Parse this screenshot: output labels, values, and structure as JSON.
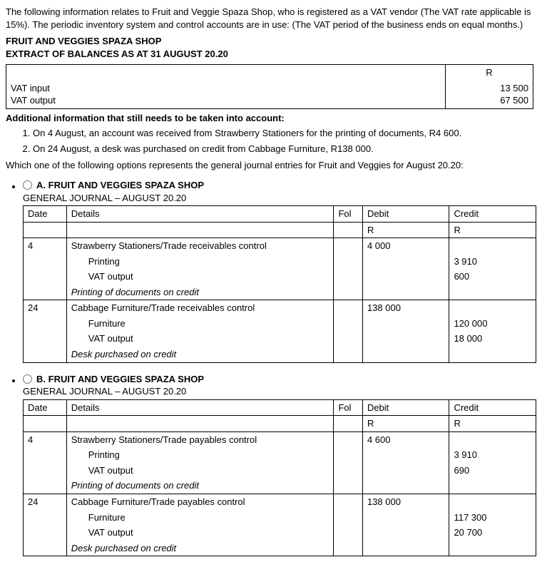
{
  "intro": "The following information relates to Fruit and Veggie Spaza Shop, who is registered as a VAT vendor (The VAT rate applicable is 15%). The periodic inventory system and control accounts are in use: (The VAT period of the business ends on equal months.)",
  "shopName": "FRUIT AND VEGGIES SPAZA SHOP",
  "extractTitle": "EXTRACT OF BALANCES AS AT 31 AUGUST 20.20",
  "balances": {
    "currencyHeader": "R",
    "rows": [
      {
        "label": "VAT input",
        "amount": "13 500"
      },
      {
        "label": "VAT output",
        "amount": "67 500"
      }
    ]
  },
  "additionalTitle": "Additional information that still needs to be taken into account:",
  "additional": [
    "On 4 August, an account was received from Strawberry Stationers for the printing of documents, R4 600.",
    "On 24 August, a desk was purchased on credit from Cabbage Furniture, R138 000."
  ],
  "question": "Which one of the following options represents the general journal entries for Fruit and Veggies for August 20.20:",
  "columns": {
    "date": "Date",
    "details": "Details",
    "fol": "Fol",
    "debit": "Debit",
    "credit": "Credit",
    "r": "R"
  },
  "options": {
    "A": {
      "letter": "A.",
      "title": "FRUIT AND VEGGIES SPAZA SHOP",
      "subtitle": "GENERAL JOURNAL – AUGUST 20.20",
      "entries": [
        {
          "date": "4",
          "line1": "Strawberry Stationers/Trade receivables control",
          "line2": "Printing",
          "line3": "VAT output",
          "narration": "Printing of documents on credit",
          "debit1": "4 000",
          "credit2": "3 910",
          "credit3": "600"
        },
        {
          "date": "24",
          "line1": "Cabbage Furniture/Trade receivables control",
          "line2": "Furniture",
          "line3": "VAT output",
          "narration": "Desk purchased on credit",
          "debit1": "138 000",
          "credit2": "120 000",
          "credit3": "18 000"
        }
      ]
    },
    "B": {
      "letter": "B.",
      "title": "FRUIT AND VEGGIES SPAZA SHOP",
      "subtitle": "GENERAL JOURNAL – AUGUST 20.20",
      "entries": [
        {
          "date": "4",
          "line1": "Strawberry Stationers/Trade payables control",
          "line2": "Printing",
          "line3": "VAT output",
          "narration": "Printing of documents on credit",
          "debit1": "4 600",
          "credit2": "3 910",
          "credit3": "690"
        },
        {
          "date": "24",
          "line1": "Cabbage Furniture/Trade payables control",
          "line2": "Furniture",
          "line3": "VAT output",
          "narration": "Desk purchased on credit",
          "debit1": "138 000",
          "credit2": "117 300",
          "credit3": "20 700"
        }
      ]
    }
  }
}
